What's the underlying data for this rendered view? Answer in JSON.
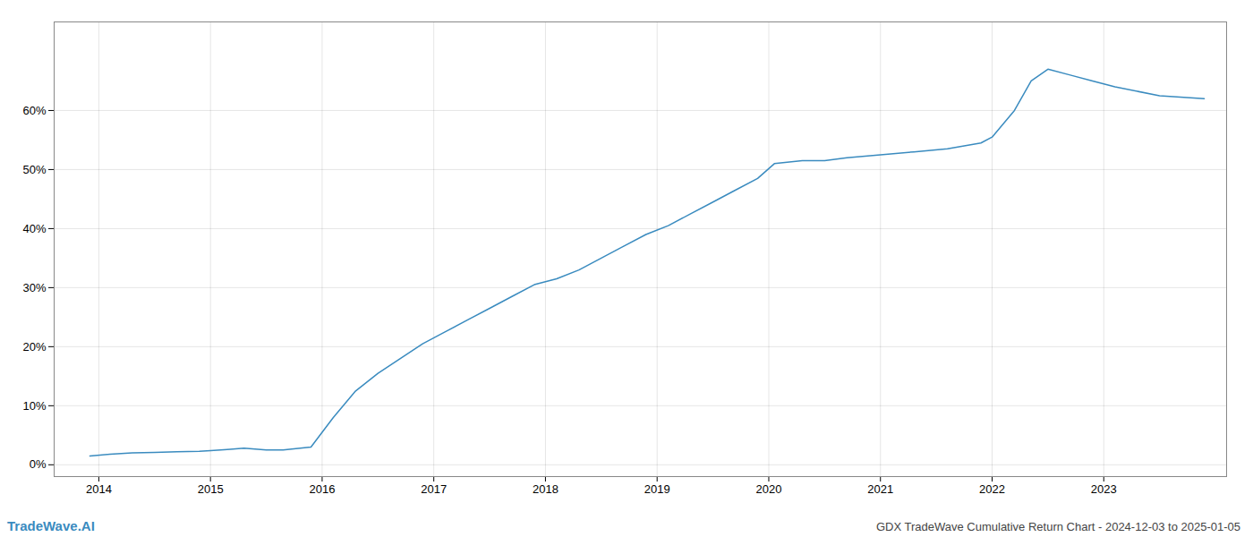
{
  "chart_data": {
    "type": "line",
    "title": "GDX TradeWave Cumulative Return Chart - 2024-12-03 to 2025-01-05",
    "annotations": [
      {
        "text": "TradeWave.AI",
        "color": "#3a8bbf"
      }
    ],
    "x": [
      2013.92,
      2014.1,
      2014.3,
      2014.5,
      2014.7,
      2014.9,
      2015.0,
      2015.15,
      2015.3,
      2015.5,
      2015.65,
      2015.9,
      2016.1,
      2016.3,
      2016.5,
      2016.7,
      2016.9,
      2017.1,
      2017.3,
      2017.5,
      2017.7,
      2017.9,
      2018.1,
      2018.3,
      2018.5,
      2018.7,
      2018.9,
      2019.1,
      2019.3,
      2019.5,
      2019.7,
      2019.9,
      2020.05,
      2020.3,
      2020.5,
      2020.7,
      2021.0,
      2021.3,
      2021.6,
      2021.75,
      2021.9,
      2022.0,
      2022.2,
      2022.35,
      2022.5,
      2022.7,
      2022.9,
      2023.1,
      2023.5,
      2023.9
    ],
    "values": [
      1.5,
      1.8,
      2.0,
      2.1,
      2.2,
      2.3,
      2.4,
      2.6,
      2.8,
      2.5,
      2.5,
      3.0,
      8.0,
      12.5,
      15.5,
      18.0,
      20.5,
      22.5,
      24.5,
      26.5,
      28.5,
      30.5,
      31.5,
      33.0,
      35.0,
      37.0,
      39.0,
      40.5,
      42.5,
      44.5,
      46.5,
      48.5,
      51.0,
      51.5,
      51.5,
      52.0,
      52.5,
      53.0,
      53.5,
      54.0,
      54.5,
      55.5,
      60.0,
      65.0,
      67.0,
      66.0,
      65.0,
      64.0,
      62.5,
      62.0
    ],
    "color": "#3a8bbf",
    "xlim": [
      2013.6,
      2024.1
    ],
    "xticks": [
      2014,
      2015,
      2016,
      2017,
      2018,
      2019,
      2020,
      2021,
      2022,
      2023
    ],
    "ylim": [
      -2,
      75
    ],
    "yticks": [
      {
        "value": 0,
        "label": "0%"
      },
      {
        "value": 10,
        "label": "10%"
      },
      {
        "value": 20,
        "label": "20%"
      },
      {
        "value": 30,
        "label": "30%"
      },
      {
        "value": 40,
        "label": "40%"
      },
      {
        "value": 50,
        "label": "50%"
      },
      {
        "value": 60,
        "label": "60%"
      }
    ],
    "grid": true
  }
}
